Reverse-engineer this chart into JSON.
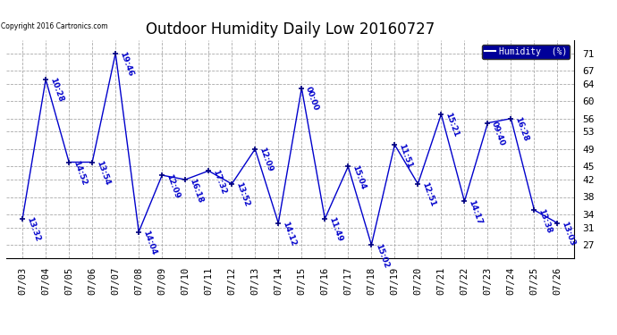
{
  "title": "Outdoor Humidity Daily Low 20160727",
  "copyright": "Copyright 2016 Cartronics.com",
  "legend_label": "Humidity  (%)",
  "x_labels": [
    "07/03",
    "07/04",
    "07/05",
    "07/06",
    "07/07",
    "07/08",
    "07/09",
    "07/10",
    "07/11",
    "07/12",
    "07/13",
    "07/14",
    "07/15",
    "07/16",
    "07/17",
    "07/18",
    "07/19",
    "07/20",
    "07/21",
    "07/22",
    "07/23",
    "07/24",
    "07/25",
    "07/26"
  ],
  "y_values": [
    33,
    65,
    46,
    46,
    71,
    30,
    43,
    42,
    44,
    41,
    49,
    32,
    63,
    33,
    45,
    27,
    50,
    41,
    57,
    37,
    55,
    56,
    35,
    32
  ],
  "time_labels": [
    "13:32",
    "10:28",
    "14:52",
    "13:54",
    "19:46",
    "14:04",
    "12:09",
    "16:18",
    "17:32",
    "13:52",
    "12:09",
    "14:12",
    "00:00",
    "11:49",
    "15:04",
    "15:02",
    "11:51",
    "12:51",
    "15:21",
    "14:17",
    "09:40",
    "16:28",
    "13:38",
    "13:03"
  ],
  "line_color": "#0000CC",
  "marker_color": "#000080",
  "bg_color": "#ffffff",
  "grid_color": "#aaaaaa",
  "title_fontsize": 12,
  "label_fontsize": 7,
  "yticks": [
    27,
    31,
    34,
    38,
    42,
    45,
    49,
    53,
    56,
    60,
    64,
    67,
    71
  ],
  "ylim": [
    24,
    74
  ],
  "legend_bg": "#000099",
  "legend_fg": "#ffffff"
}
